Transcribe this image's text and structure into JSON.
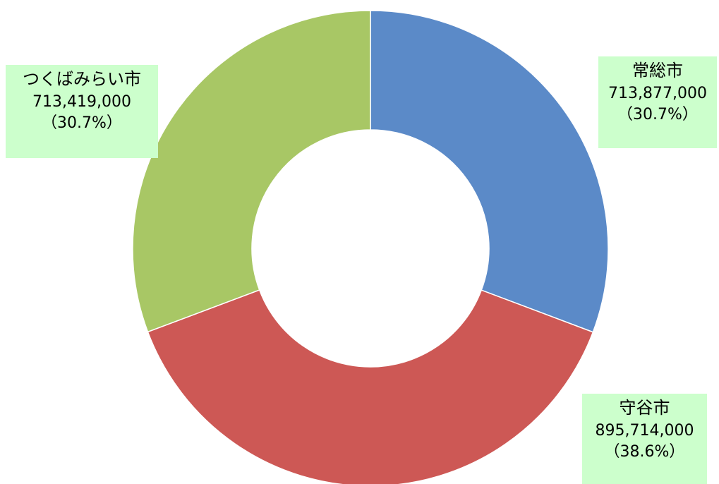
{
  "chart_data": {
    "type": "pie",
    "donut": true,
    "title": "",
    "slices": [
      {
        "name": "常総市",
        "value": 713877000,
        "value_label": "713,877,000",
        "percent_label": "（30.7%）",
        "color": "#5b8ac8"
      },
      {
        "name": "守谷市",
        "value": 895714000,
        "value_label": "895,714,000",
        "percent_label": "（38.6%）",
        "color": "#cd5855"
      },
      {
        "name": "つくばみらい市",
        "value": 713419000,
        "value_label": "713,419,000",
        "percent_label": "（30.7%）",
        "color": "#a8c765"
      }
    ],
    "label_box_color": "#ccffcc"
  }
}
